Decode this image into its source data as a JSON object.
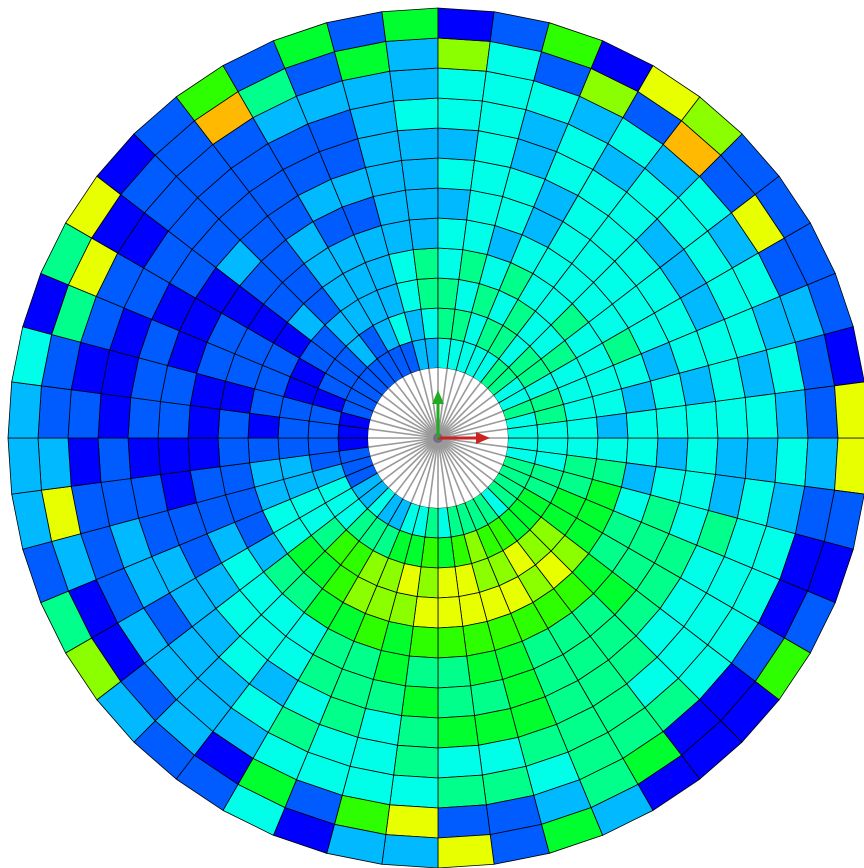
{
  "viewer": {
    "background": "#ffffff",
    "mesh_edge_color": "#000000",
    "spoke_color": "#9a9a9a",
    "hub_color": "#6f6f80"
  },
  "mesh": {
    "rings": 12,
    "sectors": 48,
    "contour_palette": [
      "#0000ff",
      "#005cff",
      "#00b9ff",
      "#00ffe8",
      "#00ff8b",
      "#00ff2e",
      "#2eff00",
      "#8bff00",
      "#e8ff00",
      "#ffb900",
      "#ff8000"
    ]
  },
  "triad": {
    "x_axis_color": "#cc2222",
    "y_axis_color": "#22aa22",
    "x_axis_name": "x-axis-arrow",
    "y_axis_name": "y-axis-arrow"
  }
}
